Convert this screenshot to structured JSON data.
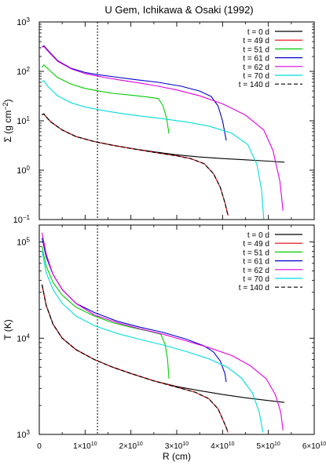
{
  "title": "U Gem, Ichikawa & Osaki (1992)",
  "chart_data": [
    {
      "type": "line",
      "panel": "top",
      "ylabel": "Σ (g cm",
      "ylabel_sup": "−2",
      "ylabel_close": ")",
      "yscale": "log",
      "ylim": [
        0.1,
        1000
      ],
      "xlim": [
        0,
        60000000000.0
      ],
      "yticks": [
        {
          "value": 0.1,
          "base": "10",
          "exp": "−1"
        },
        {
          "value": 1,
          "base": "10",
          "exp": "0"
        },
        {
          "value": 10,
          "base": "10",
          "exp": "1"
        },
        {
          "value": 100,
          "base": "10",
          "exp": "2"
        },
        {
          "value": 1000,
          "base": "10",
          "exp": "3"
        }
      ],
      "vline_x": 12700000000.0,
      "legend_position": "top-right",
      "series": [
        {
          "name": "t = 0 d",
          "color": "#000000",
          "dash": "solid",
          "x": [
            600000000.0,
            1000000000.0,
            1500000000.0,
            2500000000.0,
            5000000000.0,
            8000000000.0,
            12000000000.0,
            16000000000.0,
            20000000000.0,
            25000000000.0,
            30000000000.0,
            35000000000.0,
            40000000000.0,
            45000000000.0,
            50000000000.0,
            53500000000.0
          ],
          "y": [
            13.2,
            13.8,
            12.0,
            9.5,
            6.5,
            4.8,
            3.8,
            3.2,
            2.75,
            2.35,
            2.05,
            1.85,
            1.72,
            1.62,
            1.52,
            1.45
          ]
        },
        {
          "name": "t = 49 d",
          "color": "#e8000b",
          "dash": "solid",
          "x": [
            600000000.0,
            1000000000.0,
            1500000000.0,
            2500000000.0,
            5000000000.0,
            8000000000.0,
            12000000000.0,
            16000000000.0,
            20000000000.0,
            25000000000.0,
            30000000000.0,
            33000000000.0,
            36000000000.0,
            38000000000.0,
            39500000000.0,
            40500000000.0,
            41200000000.0
          ],
          "y": [
            13.2,
            13.8,
            12.0,
            9.5,
            6.5,
            4.8,
            3.8,
            3.2,
            2.75,
            2.3,
            1.95,
            1.72,
            1.35,
            0.85,
            0.45,
            0.22,
            0.12
          ]
        },
        {
          "name": "t = 51 d",
          "color": "#00cc00",
          "dash": "solid",
          "x": [
            600000000.0,
            1000000000.0,
            2000000000.0,
            4000000000.0,
            7000000000.0,
            10000000000.0,
            13000000000.0,
            16000000000.0,
            20000000000.0,
            24000000000.0,
            26000000000.0,
            27000000000.0,
            27800000000.0,
            28300000000.0
          ],
          "y": [
            120,
            135,
            110,
            75,
            55,
            45,
            40,
            36,
            33,
            30,
            28,
            20,
            11,
            5.5
          ]
        },
        {
          "name": "t = 61 d",
          "color": "#0000cc",
          "dash": "solid",
          "x": [
            600000000.0,
            1000000000.0,
            2000000000.0,
            4000000000.0,
            7000000000.0,
            10000000000.0,
            13000000000.0,
            17000000000.0,
            21000000000.0,
            26000000000.0,
            31000000000.0,
            35000000000.0,
            37500000000.0,
            39000000000.0,
            40000000000.0,
            40800000000.0
          ],
          "y": [
            310,
            330,
            260,
            165,
            115,
            95,
            85,
            76,
            68,
            60,
            50,
            40,
            31,
            20,
            10,
            4
          ]
        },
        {
          "name": "t = 62 d",
          "color": "#e000e0",
          "dash": "solid",
          "x": [
            600000000.0,
            1000000000.0,
            2000000000.0,
            4000000000.0,
            7000000000.0,
            10000000000.0,
            14000000000.0,
            18000000000.0,
            22000000000.0,
            26000000000.0,
            30000000000.0,
            35000000000.0,
            40000000000.0,
            45000000000.0,
            49000000000.0,
            51000000000.0,
            52500000000.0,
            53200000000.0
          ],
          "y": [
            310,
            320,
            250,
            160,
            112,
            90,
            76,
            66,
            58,
            50,
            42,
            32,
            22,
            13,
            6.5,
            2.5,
            0.6,
            0.15
          ]
        },
        {
          "name": "t = 70 d",
          "color": "#00dddd",
          "dash": "solid",
          "x": [
            600000000.0,
            1000000000.0,
            2000000000.0,
            4000000000.0,
            7000000000.0,
            10000000000.0,
            14000000000.0,
            18000000000.0,
            22000000000.0,
            27000000000.0,
            32000000000.0,
            37000000000.0,
            42000000000.0,
            45500000000.0,
            47500000000.0,
            48500000000.0,
            49000000000.0
          ],
          "y": [
            62,
            65,
            48,
            32,
            23,
            19,
            16,
            14,
            12.5,
            11,
            9.5,
            7.8,
            5.6,
            3.3,
            1.3,
            0.4,
            0.1
          ]
        },
        {
          "name": "t = 140 d",
          "color": "#000000",
          "dash": "dashed",
          "x": [
            600000000.0,
            1000000000.0,
            1500000000.0,
            2500000000.0,
            5000000000.0,
            8000000000.0,
            12000000000.0,
            16000000000.0,
            20000000000.0,
            25000000000.0,
            30000000000.0,
            33000000000.0,
            36000000000.0,
            38000000000.0,
            39500000000.0,
            40500000000.0,
            41200000000.0
          ],
          "y": [
            13.2,
            13.8,
            12.0,
            9.5,
            6.5,
            4.8,
            3.8,
            3.2,
            2.75,
            2.3,
            1.95,
            1.72,
            1.35,
            0.85,
            0.45,
            0.22,
            0.12
          ]
        }
      ]
    },
    {
      "type": "line",
      "panel": "bottom",
      "ylabel": "T (K)",
      "xlabel": "R (cm)",
      "yscale": "log",
      "ylim": [
        1000,
        150000
      ],
      "xlim": [
        0,
        60000000000.0
      ],
      "yticks": [
        {
          "value": 1000,
          "base": "10",
          "exp": "3"
        },
        {
          "value": 10000,
          "base": "10",
          "exp": "4"
        },
        {
          "value": 100000,
          "base": "10",
          "exp": "5"
        }
      ],
      "xticks": [
        {
          "value": 0,
          "text": "0",
          "exp": ""
        },
        {
          "value": 10000000000.0,
          "text": "1×10",
          "exp": "10"
        },
        {
          "value": 20000000000.0,
          "text": "2×10",
          "exp": "10"
        },
        {
          "value": 30000000000.0,
          "text": "3×10",
          "exp": "10"
        },
        {
          "value": 40000000000.0,
          "text": "4×10",
          "exp": "10"
        },
        {
          "value": 50000000000.0,
          "text": "5×10",
          "exp": "10"
        },
        {
          "value": 60000000000.0,
          "text": "6×10",
          "exp": "10"
        }
      ],
      "vline_x": 12700000000.0,
      "legend_position": "top-right",
      "series": [
        {
          "name": "t = 0 d",
          "color": "#000000",
          "dash": "solid",
          "x": [
            600000000.0,
            1500000000.0,
            3000000000.0,
            5000000000.0,
            8000000000.0,
            12000000000.0,
            16000000000.0,
            20000000000.0,
            25000000000.0,
            30000000000.0,
            35000000000.0,
            40000000000.0,
            45000000000.0,
            50000000000.0,
            53500000000.0
          ],
          "y": [
            36000,
            22000,
            14000,
            10000,
            7600,
            6000,
            5000,
            4300,
            3600,
            3150,
            2850,
            2600,
            2400,
            2250,
            2150
          ]
        },
        {
          "name": "t = 49 d",
          "color": "#e8000b",
          "dash": "solid",
          "x": [
            600000000.0,
            1500000000.0,
            3000000000.0,
            5000000000.0,
            8000000000.0,
            12000000000.0,
            16000000000.0,
            20000000000.0,
            25000000000.0,
            30000000000.0,
            34000000000.0,
            37000000000.0,
            39000000000.0,
            40000000000.0,
            40800000000.0,
            41200000000.0
          ],
          "y": [
            36000,
            22000,
            14000,
            10000,
            7600,
            6000,
            5000,
            4300,
            3600,
            3100,
            2750,
            2350,
            1850,
            1450,
            1180,
            1050
          ]
        },
        {
          "name": "t = 51 d",
          "color": "#00cc00",
          "dash": "solid",
          "x": [
            600000000.0,
            1500000000.0,
            3000000000.0,
            5000000000.0,
            8000000000.0,
            12000000000.0,
            16000000000.0,
            20000000000.0,
            24000000000.0,
            26500000000.0,
            27500000000.0,
            28000000000.0,
            28300000000.0
          ],
          "y": [
            90000,
            56000,
            38000,
            28000,
            21000,
            17000,
            14500,
            13000,
            11800,
            11000,
            8500,
            6000,
            3800
          ]
        },
        {
          "name": "t = 61 d",
          "color": "#0000cc",
          "dash": "solid",
          "x": [
            600000000.0,
            1500000000.0,
            3000000000.0,
            5000000000.0,
            8000000000.0,
            12000000000.0,
            17000000000.0,
            22000000000.0,
            27000000000.0,
            32000000000.0,
            36000000000.0,
            38000000000.0,
            39500000000.0,
            40500000000.0,
            40800000000.0
          ],
          "y": [
            110000,
            70000,
            46000,
            32000,
            23000,
            18500,
            15000,
            13000,
            11500,
            9800,
            8300,
            7200,
            5800,
            4300,
            3500
          ]
        },
        {
          "name": "t = 62 d",
          "color": "#e000e0",
          "dash": "solid",
          "x": [
            600000000.0,
            1500000000.0,
            3000000000.0,
            5000000000.0,
            8000000000.0,
            12000000000.0,
            17000000000.0,
            22000000000.0,
            27000000000.0,
            32000000000.0,
            37000000000.0,
            42000000000.0,
            46000000000.0,
            49500000000.0,
            51500000000.0,
            52700000000.0,
            53200000000.0
          ],
          "y": [
            125000,
            75000,
            46000,
            32000,
            23000,
            17500,
            14500,
            12500,
            11000,
            9400,
            8000,
            6600,
            5200,
            3800,
            2600,
            1700,
            1100
          ]
        },
        {
          "name": "t = 70 d",
          "color": "#00dddd",
          "dash": "solid",
          "x": [
            600000000.0,
            1500000000.0,
            3000000000.0,
            5000000000.0,
            8000000000.0,
            12000000000.0,
            17000000000.0,
            22000000000.0,
            27000000000.0,
            32000000000.0,
            37000000000.0,
            41000000000.0,
            44000000000.0,
            46500000000.0,
            48000000000.0,
            48800000000.0
          ],
          "y": [
            80000,
            48000,
            32000,
            23000,
            17000,
            13500,
            11200,
            9700,
            8500,
            7300,
            6100,
            5000,
            3900,
            2700,
            1700,
            1050
          ]
        },
        {
          "name": "t = 140 d",
          "color": "#000000",
          "dash": "dashed",
          "x": [
            600000000.0,
            1500000000.0,
            3000000000.0,
            5000000000.0,
            8000000000.0,
            12000000000.0,
            16000000000.0,
            20000000000.0,
            25000000000.0,
            30000000000.0,
            34000000000.0,
            37000000000.0,
            39000000000.0,
            40000000000.0,
            40800000000.0,
            41200000000.0
          ],
          "y": [
            36000,
            22000,
            14000,
            10000,
            7600,
            6000,
            5000,
            4300,
            3600,
            3100,
            2750,
            2350,
            1850,
            1450,
            1180,
            1050
          ]
        }
      ]
    }
  ]
}
